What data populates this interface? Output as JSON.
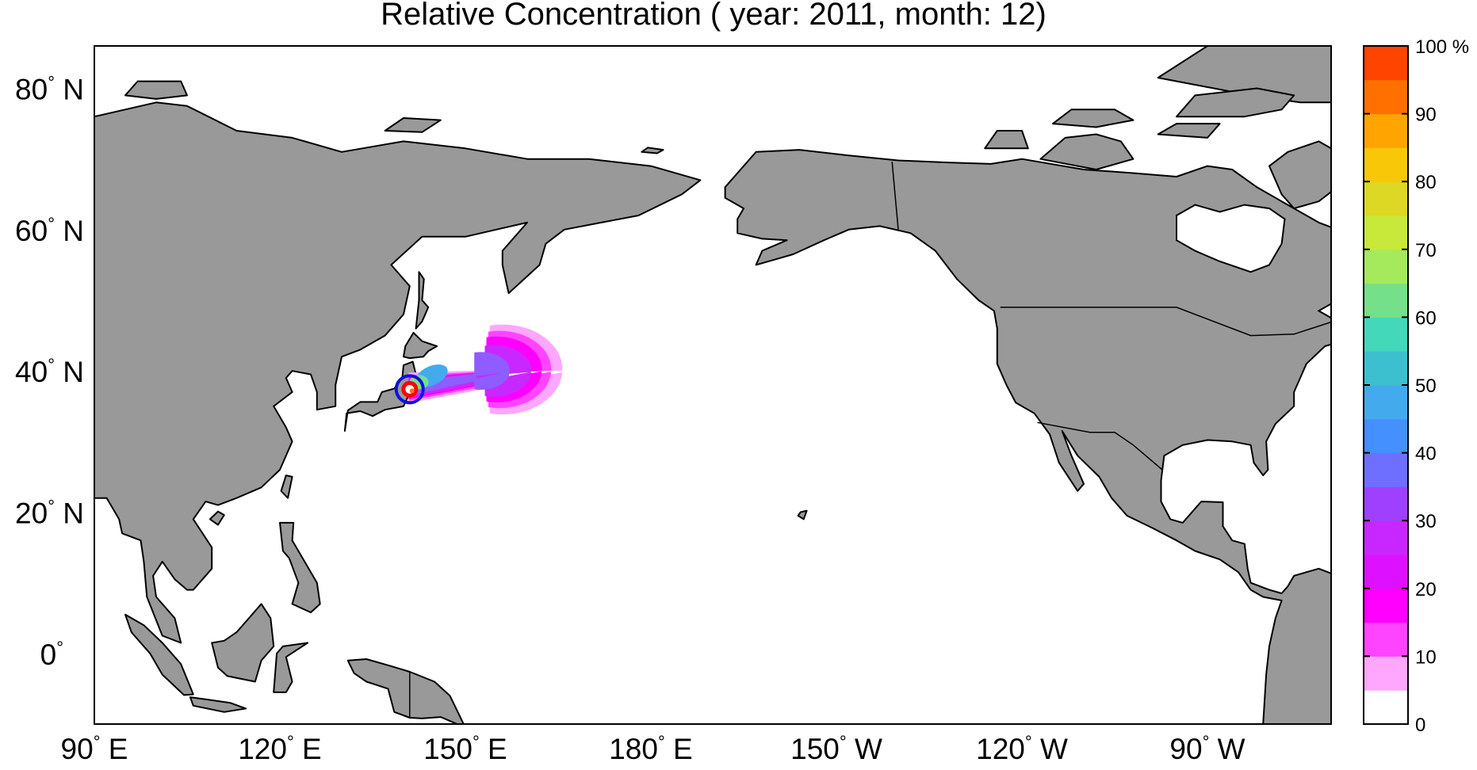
{
  "chart_data": {
    "type": "heatmap",
    "title": "Relative Concentration ( year: 2011, month: 12)",
    "map_projection": "equirectangular",
    "lon_range": [
      90,
      290
    ],
    "lat_range": [
      -10,
      86
    ],
    "x_ticks": [
      {
        "lon": 90,
        "label": "90° E"
      },
      {
        "lon": 120,
        "label": "120° E"
      },
      {
        "lon": 150,
        "label": "150° E"
      },
      {
        "lon": 180,
        "label": "180° E"
      },
      {
        "lon": 210,
        "label": "150° W"
      },
      {
        "lon": 240,
        "label": "120° W"
      },
      {
        "lon": 270,
        "label": "90° W"
      }
    ],
    "y_ticks": [
      {
        "lat": 80,
        "label": "80° N"
      },
      {
        "lat": 60,
        "label": "60° N"
      },
      {
        "lat": 40,
        "label": "40° N"
      },
      {
        "lat": 20,
        "label": "20° N"
      },
      {
        "lat": 0,
        "label": "0°"
      }
    ],
    "colorbar": {
      "ticks": [
        "0",
        "10",
        "20",
        "30",
        "40",
        "50",
        "60",
        "70",
        "80",
        "90",
        "100 %"
      ],
      "range": [
        0,
        100
      ],
      "step": 5,
      "colors": [
        "#ffffff",
        "#ffa6ff",
        "#ff44ff",
        "#ff00ff",
        "#dd11ff",
        "#c828ff",
        "#a040ff",
        "#6f6fff",
        "#4490ff",
        "#44aaee",
        "#3cc0d0",
        "#44d8bb",
        "#74e08a",
        "#a4ea5c",
        "#c8e83a",
        "#dcd823",
        "#f8c808",
        "#ffa400",
        "#ff7000",
        "#ff4400"
      ]
    },
    "source_location": {
      "lon": 141.0,
      "lat": 37.4
    },
    "plume": {
      "description_levels": [
        {
          "min_pct": 5,
          "color": "#ffa6ff"
        },
        {
          "min_pct": 10,
          "color": "#ff44ff"
        },
        {
          "min_pct": 15,
          "color": "#ff00ff"
        },
        {
          "min_pct": 25,
          "color": "#c828ff"
        },
        {
          "min_pct": 35,
          "color": "#8f5cff"
        },
        {
          "min_pct": 45,
          "color": "#44aaee"
        },
        {
          "min_pct": 60,
          "color": "#74e08a"
        }
      ]
    },
    "land_color": "#999999",
    "ocean_color": "#ffffff"
  }
}
